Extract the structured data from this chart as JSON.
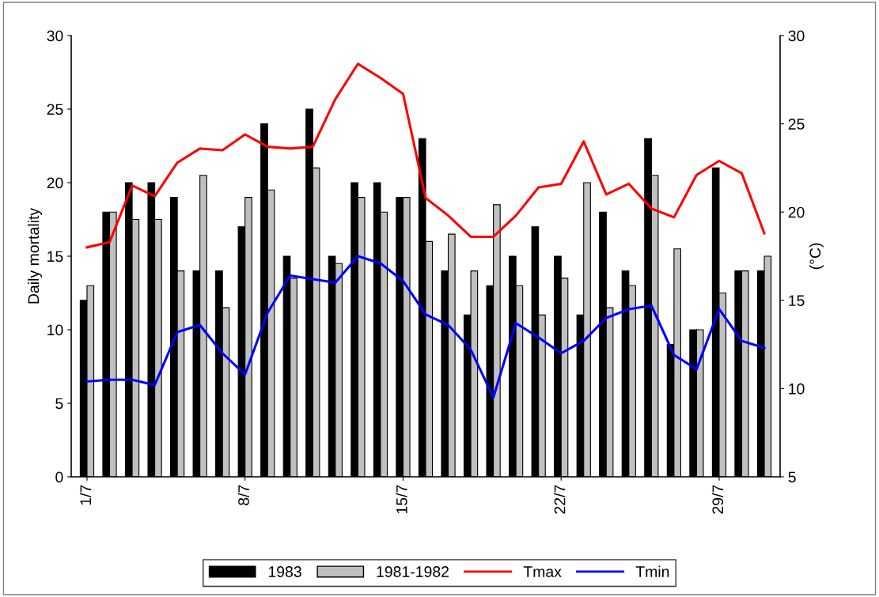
{
  "chart_data": {
    "type": "bar",
    "ylabel": "Daily mortality",
    "y2label": "(°C)",
    "categories": [
      "1/7",
      null,
      null,
      null,
      null,
      null,
      null,
      "8/7",
      null,
      null,
      null,
      null,
      null,
      null,
      "15/7",
      null,
      null,
      null,
      null,
      null,
      null,
      "22/7",
      null,
      null,
      null,
      null,
      null,
      null,
      "29/7",
      null,
      null
    ],
    "series": [
      {
        "name": "1983",
        "color": "#000000",
        "values": [
          12,
          18,
          20,
          20,
          19,
          14,
          14,
          17,
          24,
          15,
          25,
          15,
          20,
          20,
          19,
          23,
          14,
          11,
          13,
          15,
          17,
          15,
          11,
          18,
          14,
          23,
          9,
          10,
          21,
          14,
          14
        ]
      },
      {
        "name": "1981-1982",
        "color": "#c0c0c0",
        "values": [
          13,
          18,
          17.5,
          17.5,
          14,
          20.5,
          11.5,
          19,
          19.5,
          13.5,
          21,
          14.5,
          19,
          18,
          19,
          16,
          16.5,
          14,
          18.5,
          13,
          11,
          13.5,
          20,
          11.5,
          13,
          20.5,
          15.5,
          10,
          12.5,
          14,
          15
        ]
      },
      {
        "name": "Tmax",
        "type": "line",
        "axis": "y2",
        "color": "#ff0000",
        "values": [
          18.0,
          18.3,
          21.5,
          20.9,
          22.8,
          23.6,
          23.5,
          24.4,
          23.7,
          23.6,
          23.7,
          26.4,
          28.4,
          27.6,
          26.7,
          20.8,
          19.8,
          18.6,
          18.6,
          19.8,
          21.4,
          21.6,
          24.0,
          21.0,
          21.6,
          20.2,
          19.7,
          22.1,
          22.9,
          22.2,
          18.8
        ]
      },
      {
        "name": "Tmin",
        "type": "line",
        "axis": "y2",
        "color": "#0000ff",
        "values": [
          10.4,
          10.5,
          10.5,
          10.2,
          13.2,
          13.6,
          12.0,
          10.8,
          14.3,
          16.4,
          16.2,
          16.0,
          17.5,
          17.1,
          16.1,
          14.2,
          13.6,
          12.2,
          9.5,
          13.7,
          12.9,
          12.0,
          12.7,
          14.0,
          14.5,
          14.7,
          11.9,
          11.1,
          14.5,
          12.7,
          12.3
        ]
      }
    ],
    "ylim": [
      0,
      30
    ],
    "yticks": [
      0,
      5,
      10,
      15,
      20,
      25,
      30
    ],
    "y2lim": [
      5,
      30
    ],
    "y2ticks": [
      5,
      10,
      15,
      20,
      25,
      30
    ],
    "grid": false,
    "legend": "bottom",
    "marker": "none",
    "line_style": "solid"
  }
}
